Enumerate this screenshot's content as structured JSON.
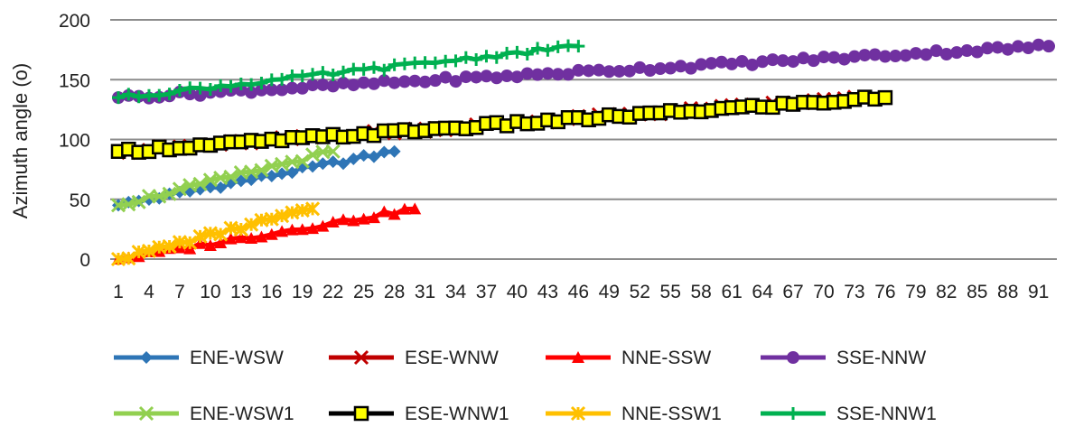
{
  "chart_data": {
    "type": "line",
    "title": "",
    "xlabel": "",
    "ylabel": "Azimuth angle (o)",
    "ylim": [
      0,
      200
    ],
    "yticks": [
      0,
      50,
      100,
      150,
      200
    ],
    "x_range": [
      1,
      92
    ],
    "xtick_start": 1,
    "xtick_step": 3,
    "grid": "horizontal",
    "legend_position": "bottom",
    "series": [
      {
        "name": "ENE-WSW",
        "color": "#2e75b6",
        "marker": "diamond",
        "length": 28,
        "start": 45,
        "end": 90
      },
      {
        "name": "ESE-WNW",
        "color": "#c00000",
        "marker": "x",
        "length": 74,
        "start": 90,
        "end": 135
      },
      {
        "name": "NNE-SSW",
        "color": "#ff0000",
        "marker": "triangle",
        "length": 30,
        "start": 0,
        "end": 42
      },
      {
        "name": "SSE-NNW",
        "color": "#7030a0",
        "marker": "circle",
        "length": 92,
        "start": 135,
        "end": 178
      },
      {
        "name": "ENE-WSW1",
        "color": "#92d050",
        "marker": "x",
        "length": 22,
        "start": 45,
        "end": 90
      },
      {
        "name": "ESE-WNW1",
        "color": "#000000",
        "marker": "square",
        "length": 76,
        "start": 90,
        "end": 135
      },
      {
        "name": "NNE-SSW1",
        "color": "#ffc000",
        "marker": "star",
        "length": 20,
        "start": 0,
        "end": 42
      },
      {
        "name": "SSE-NNW1",
        "color": "#00b050",
        "marker": "plus",
        "length": 46,
        "start": 135,
        "end": 178
      }
    ]
  }
}
